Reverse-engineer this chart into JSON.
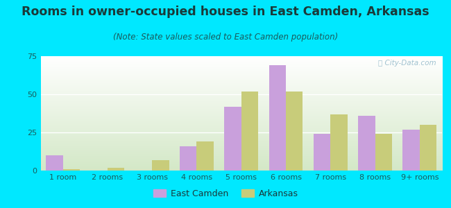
{
  "title": "Rooms in owner-occupied houses in East Camden, Arkansas",
  "subtitle": "(Note: State values scaled to East Camden population)",
  "categories": [
    "1 room",
    "2 rooms",
    "3 rooms",
    "4 rooms",
    "5 rooms",
    "6 rooms",
    "7 rooms",
    "8 rooms",
    "9+ rooms"
  ],
  "east_camden": [
    10,
    0,
    0,
    16,
    42,
    69,
    24,
    36,
    27
  ],
  "arkansas": [
    1,
    2,
    7,
    19,
    52,
    52,
    37,
    24,
    30
  ],
  "ec_color": "#c9a0dc",
  "ar_color": "#c8cc7a",
  "background_outer": "#00e8ff",
  "title_color": "#1a3a3a",
  "subtitle_color": "#1a5a5a",
  "tick_color": "#1a5a5a",
  "watermark_color": "#90b8c8",
  "grid_color": "#e8f0e8",
  "ylim": [
    0,
    75
  ],
  "yticks": [
    0,
    25,
    50,
    75
  ],
  "bar_width": 0.38,
  "title_fontsize": 12.5,
  "subtitle_fontsize": 8.5,
  "tick_fontsize": 8,
  "legend_fontsize": 9
}
